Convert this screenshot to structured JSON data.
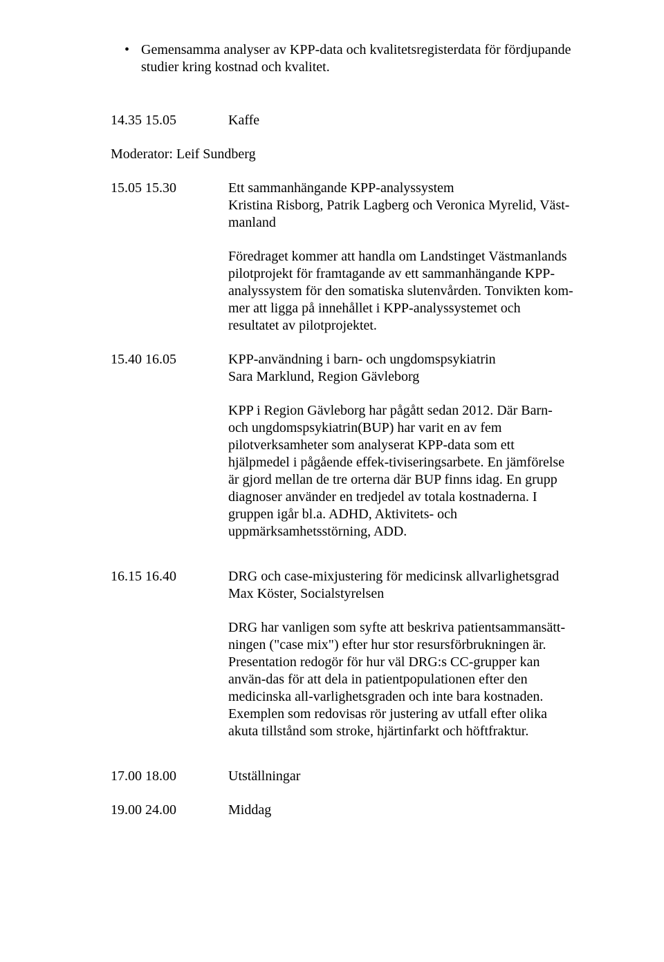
{
  "bullet": {
    "dot": "•",
    "text": "Gemensamma analyser av KPP-data och kvalitetsregisterdata för fördjupande studier kring kostnad och kvalitet."
  },
  "block1": {
    "time": "14.35 15.05",
    "label": "Kaffe"
  },
  "moderator": "Moderator: Leif Sundberg",
  "block2": {
    "time": "15.05 15.30",
    "title": "Ett sammanhängande KPP-analyssystem",
    "speakers": "Kristina Risborg, Patrik Lagberg och Veronica Myrelid, Väst-manland",
    "body": "Föredraget kommer att handla om Landstinget Västmanlands pilotprojekt för framtagande av ett sammanhängande KPP-analyssystem för den somatiska slutenvården. Tonvikten kom-mer att ligga på innehållet i KPP-analyssystemet och resultatet av pilotprojektet."
  },
  "block3": {
    "time": "15.40 16.05",
    "title": "KPP-användning i barn- och ungdomspsykiatrin",
    "speakers": "Sara Marklund, Region Gävleborg",
    "body": "KPP i Region Gävleborg har pågått sedan 2012. Där Barn- och ungdomspsykiatrin(BUP) har varit en av fem pilotverksamheter som analyserat KPP-data som ett hjälpmedel i pågående effek-tiviseringsarbete. En jämförelse är gjord mellan de tre orterna där BUP finns idag. En grupp diagnoser använder en tredjedel av totala kostnaderna. I gruppen igår bl.a. ADHD, Aktivitets- och uppmärksamhetsstörning, ADD."
  },
  "block4": {
    "time": "16.15 16.40",
    "title": "DRG och case-mixjustering för medicinsk allvarlighetsgrad",
    "speakers": "Max Köster, Socialstyrelsen",
    "body1": "DRG har vanligen som syfte att beskriva patientsammansätt-ningen (\"case mix\") efter hur stor resursförbrukningen är. Presentation redogör för hur väl DRG:s CC-grupper kan använ-das för att dela in patientpopulationen efter den medicinska all-varlighetsgraden och inte bara kostnaden.",
    "body2": "Exemplen som redovisas rör justering av utfall efter olika akuta tillstånd som stroke, hjärtinfarkt och höftfraktur."
  },
  "block5": {
    "time": "17.00 18.00",
    "label": "Utställningar"
  },
  "block6": {
    "time": "19.00 24.00",
    "label": "Middag"
  }
}
